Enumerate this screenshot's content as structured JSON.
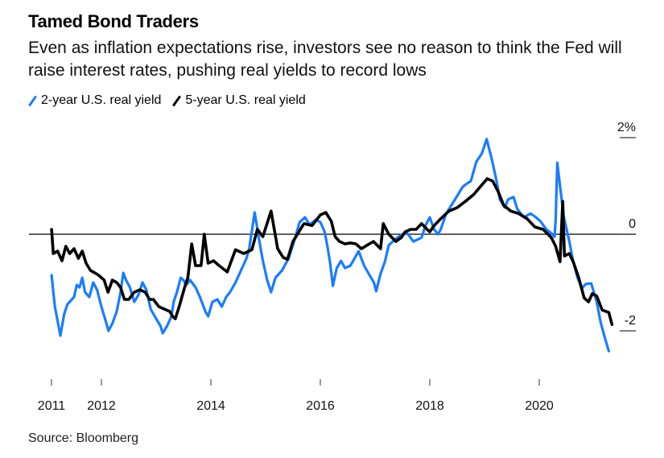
{
  "header": {
    "title": "Tamed Bond Traders",
    "subtitle": "Even as inflation expectations rise, investors see no reason to think the Fed will raise interest rates, pushing real yields to record lows"
  },
  "legend": [
    {
      "label": "2-year U.S. real yield",
      "color": "#1a7cff",
      "icon": "slash-swatch-blue"
    },
    {
      "label": "5-year U.S. real yield",
      "color": "#000000",
      "icon": "slash-swatch-black"
    }
  ],
  "source": "Source: Bloomberg",
  "chart_data": {
    "type": "line",
    "title": "Tamed Bond Traders",
    "subtitle": "Even as inflation expectations rise, investors see no reason to think the Fed will raise interest rates, pushing real yields to record lows",
    "xlabel": "",
    "ylabel": "",
    "xlim": [
      2011.0,
      2021.3
    ],
    "ylim": [
      -2.9,
      2.3
    ],
    "x_ticks": [
      {
        "value": 2011.09,
        "label": "2011"
      },
      {
        "value": 2012.0,
        "label": "2012"
      },
      {
        "value": 2014.0,
        "label": "2014"
      },
      {
        "value": 2016.0,
        "label": "2016"
      },
      {
        "value": 2018.0,
        "label": "2018"
      },
      {
        "value": 2020.0,
        "label": "2020"
      }
    ],
    "y_ticks": [
      {
        "value": 2,
        "label": "2%"
      },
      {
        "value": 0,
        "label": "0"
      },
      {
        "value": -2,
        "label": "-2"
      }
    ],
    "grid": false,
    "zero_line": true,
    "legend_position": "top-left",
    "series": [
      {
        "name": "2-year U.S. real yield",
        "color": "#1a7cff",
        "points": [
          [
            2011.09,
            -0.85
          ],
          [
            2011.15,
            -1.5
          ],
          [
            2011.2,
            -1.8
          ],
          [
            2011.25,
            -2.1
          ],
          [
            2011.32,
            -1.65
          ],
          [
            2011.38,
            -1.45
          ],
          [
            2011.42,
            -1.4
          ],
          [
            2011.5,
            -1.3
          ],
          [
            2011.55,
            -1.05
          ],
          [
            2011.6,
            -1.1
          ],
          [
            2011.65,
            -0.9
          ],
          [
            2011.7,
            -1.2
          ],
          [
            2011.78,
            -1.3
          ],
          [
            2011.85,
            -1.0
          ],
          [
            2011.92,
            -1.15
          ],
          [
            2012.0,
            -1.5
          ],
          [
            2012.08,
            -1.8
          ],
          [
            2012.13,
            -2.0
          ],
          [
            2012.2,
            -1.85
          ],
          [
            2012.28,
            -1.6
          ],
          [
            2012.35,
            -1.2
          ],
          [
            2012.4,
            -0.8
          ],
          [
            2012.45,
            -0.95
          ],
          [
            2012.52,
            -1.1
          ],
          [
            2012.6,
            -1.4
          ],
          [
            2012.68,
            -1.25
          ],
          [
            2012.75,
            -1.0
          ],
          [
            2012.82,
            -1.15
          ],
          [
            2012.9,
            -1.55
          ],
          [
            2013.0,
            -1.75
          ],
          [
            2013.08,
            -1.9
          ],
          [
            2013.12,
            -2.05
          ],
          [
            2013.2,
            -1.9
          ],
          [
            2013.28,
            -1.7
          ],
          [
            2013.32,
            -1.4
          ],
          [
            2013.38,
            -1.2
          ],
          [
            2013.45,
            -0.9
          ],
          [
            2013.5,
            -0.95
          ],
          [
            2013.55,
            -1.05
          ],
          [
            2013.62,
            -0.95
          ],
          [
            2013.72,
            -1.1
          ],
          [
            2013.8,
            -1.3
          ],
          [
            2013.9,
            -1.6
          ],
          [
            2013.95,
            -1.7
          ],
          [
            2014.03,
            -1.4
          ],
          [
            2014.12,
            -1.35
          ],
          [
            2014.2,
            -1.5
          ],
          [
            2014.28,
            -1.3
          ],
          [
            2014.35,
            -1.2
          ],
          [
            2014.45,
            -1.0
          ],
          [
            2014.55,
            -0.75
          ],
          [
            2014.65,
            -0.5
          ],
          [
            2014.7,
            -0.3
          ],
          [
            2014.8,
            0.45
          ],
          [
            2014.88,
            -0.1
          ],
          [
            2014.95,
            -0.55
          ],
          [
            2015.03,
            -0.95
          ],
          [
            2015.1,
            -1.2
          ],
          [
            2015.18,
            -0.9
          ],
          [
            2015.3,
            -0.75
          ],
          [
            2015.42,
            -0.5
          ],
          [
            2015.52,
            -0.15
          ],
          [
            2015.62,
            0.25
          ],
          [
            2015.72,
            0.35
          ],
          [
            2015.8,
            0.2
          ],
          [
            2015.92,
            0.3
          ],
          [
            2016.0,
            0.25
          ],
          [
            2016.08,
            0.05
          ],
          [
            2016.13,
            -0.25
          ],
          [
            2016.18,
            -0.6
          ],
          [
            2016.23,
            -1.07
          ],
          [
            2016.3,
            -0.7
          ],
          [
            2016.38,
            -0.55
          ],
          [
            2016.45,
            -0.7
          ],
          [
            2016.55,
            -0.65
          ],
          [
            2016.7,
            -0.35
          ],
          [
            2016.8,
            -0.65
          ],
          [
            2016.9,
            -0.85
          ],
          [
            2016.98,
            -1.0
          ],
          [
            2017.02,
            -1.18
          ],
          [
            2017.1,
            -0.82
          ],
          [
            2017.18,
            -0.57
          ],
          [
            2017.25,
            -0.23
          ],
          [
            2017.35,
            -0.12
          ],
          [
            2017.47,
            -0.02
          ],
          [
            2017.57,
            0.05
          ],
          [
            2017.7,
            -0.15
          ],
          [
            2017.85,
            -0.07
          ],
          [
            2017.92,
            0.18
          ],
          [
            2018.0,
            0.35
          ],
          [
            2018.08,
            0.1
          ],
          [
            2018.15,
            0.0
          ],
          [
            2018.2,
            0.1
          ],
          [
            2018.3,
            0.43
          ],
          [
            2018.45,
            0.7
          ],
          [
            2018.6,
            0.98
          ],
          [
            2018.68,
            1.05
          ],
          [
            2018.75,
            1.1
          ],
          [
            2018.85,
            1.5
          ],
          [
            2018.95,
            1.67
          ],
          [
            2019.04,
            1.97
          ],
          [
            2019.14,
            1.52
          ],
          [
            2019.22,
            1.1
          ],
          [
            2019.28,
            0.72
          ],
          [
            2019.37,
            0.55
          ],
          [
            2019.43,
            0.72
          ],
          [
            2019.53,
            0.77
          ],
          [
            2019.6,
            0.52
          ],
          [
            2019.72,
            0.35
          ],
          [
            2019.84,
            0.43
          ],
          [
            2019.94,
            0.35
          ],
          [
            2020.02,
            0.27
          ],
          [
            2020.13,
            0.1
          ],
          [
            2020.22,
            0.02
          ],
          [
            2020.28,
            -0.05
          ],
          [
            2020.3,
            0.3
          ],
          [
            2020.33,
            1.48
          ],
          [
            2020.38,
            1.0
          ],
          [
            2020.45,
            0.35
          ],
          [
            2020.55,
            -0.15
          ],
          [
            2020.62,
            -0.57
          ],
          [
            2020.7,
            -0.9
          ],
          [
            2020.78,
            -1.12
          ],
          [
            2020.85,
            -1.03
          ],
          [
            2020.95,
            -1.02
          ],
          [
            2021.05,
            -1.4
          ],
          [
            2021.12,
            -1.82
          ],
          [
            2021.2,
            -2.15
          ],
          [
            2021.27,
            -2.42
          ]
        ]
      },
      {
        "name": "5-year U.S. real yield",
        "color": "#000000",
        "points": [
          [
            2011.09,
            0.1
          ],
          [
            2011.12,
            -0.4
          ],
          [
            2011.2,
            -0.35
          ],
          [
            2011.28,
            -0.55
          ],
          [
            2011.35,
            -0.25
          ],
          [
            2011.42,
            -0.4
          ],
          [
            2011.5,
            -0.3
          ],
          [
            2011.58,
            -0.5
          ],
          [
            2011.65,
            -0.35
          ],
          [
            2011.72,
            -0.6
          ],
          [
            2011.8,
            -0.75
          ],
          [
            2011.88,
            -0.8
          ],
          [
            2011.95,
            -0.85
          ],
          [
            2012.05,
            -0.95
          ],
          [
            2012.12,
            -1.2
          ],
          [
            2012.2,
            -0.95
          ],
          [
            2012.28,
            -1.0
          ],
          [
            2012.35,
            -1.1
          ],
          [
            2012.42,
            -1.35
          ],
          [
            2012.5,
            -1.35
          ],
          [
            2012.6,
            -1.2
          ],
          [
            2012.7,
            -1.15
          ],
          [
            2012.8,
            -1.2
          ],
          [
            2012.88,
            -1.35
          ],
          [
            2012.95,
            -1.35
          ],
          [
            2013.05,
            -1.5
          ],
          [
            2013.15,
            -1.55
          ],
          [
            2013.25,
            -1.6
          ],
          [
            2013.3,
            -1.7
          ],
          [
            2013.35,
            -1.75
          ],
          [
            2013.42,
            -1.5
          ],
          [
            2013.52,
            -1.1
          ],
          [
            2013.58,
            -0.9
          ],
          [
            2013.65,
            -0.2
          ],
          [
            2013.72,
            -0.65
          ],
          [
            2013.82,
            -0.65
          ],
          [
            2013.88,
            0.0
          ],
          [
            2013.95,
            -0.6
          ],
          [
            2014.05,
            -0.55
          ],
          [
            2014.15,
            -0.65
          ],
          [
            2014.3,
            -0.78
          ],
          [
            2014.45,
            -0.32
          ],
          [
            2014.6,
            -0.4
          ],
          [
            2014.75,
            -0.32
          ],
          [
            2014.85,
            0.1
          ],
          [
            2014.95,
            -0.05
          ],
          [
            2015.1,
            0.48
          ],
          [
            2015.22,
            -0.3
          ],
          [
            2015.32,
            -0.48
          ],
          [
            2015.4,
            -0.52
          ],
          [
            2015.5,
            -0.15
          ],
          [
            2015.7,
            0.22
          ],
          [
            2015.85,
            0.18
          ],
          [
            2016.0,
            0.4
          ],
          [
            2016.1,
            0.45
          ],
          [
            2016.2,
            0.27
          ],
          [
            2016.27,
            -0.05
          ],
          [
            2016.35,
            -0.15
          ],
          [
            2016.45,
            -0.2
          ],
          [
            2016.55,
            -0.18
          ],
          [
            2016.65,
            -0.2
          ],
          [
            2016.75,
            -0.3
          ],
          [
            2016.85,
            -0.23
          ],
          [
            2016.97,
            -0.15
          ],
          [
            2017.1,
            -0.3
          ],
          [
            2017.15,
            0.22
          ],
          [
            2017.25,
            0.0
          ],
          [
            2017.38,
            -0.15
          ],
          [
            2017.48,
            -0.07
          ],
          [
            2017.55,
            0.05
          ],
          [
            2017.65,
            0.1
          ],
          [
            2017.75,
            0.1
          ],
          [
            2017.85,
            0.22
          ],
          [
            2017.95,
            0.1
          ],
          [
            2018.0,
            0.05
          ],
          [
            2018.08,
            0.18
          ],
          [
            2018.2,
            0.32
          ],
          [
            2018.35,
            0.48
          ],
          [
            2018.5,
            0.55
          ],
          [
            2018.65,
            0.68
          ],
          [
            2018.8,
            0.82
          ],
          [
            2018.95,
            1.02
          ],
          [
            2019.05,
            1.15
          ],
          [
            2019.15,
            1.1
          ],
          [
            2019.25,
            0.88
          ],
          [
            2019.35,
            0.6
          ],
          [
            2019.48,
            0.48
          ],
          [
            2019.62,
            0.43
          ],
          [
            2019.78,
            0.32
          ],
          [
            2019.92,
            0.15
          ],
          [
            2020.07,
            0.1
          ],
          [
            2020.22,
            -0.07
          ],
          [
            2020.3,
            -0.25
          ],
          [
            2020.38,
            -0.57
          ],
          [
            2020.43,
            0.68
          ],
          [
            2020.46,
            -0.45
          ],
          [
            2020.55,
            -0.4
          ],
          [
            2020.62,
            -0.57
          ],
          [
            2020.72,
            -0.9
          ],
          [
            2020.82,
            -1.32
          ],
          [
            2020.9,
            -1.4
          ],
          [
            2020.97,
            -1.23
          ],
          [
            2021.05,
            -1.28
          ],
          [
            2021.15,
            -1.57
          ],
          [
            2021.27,
            -1.62
          ],
          [
            2021.33,
            -1.87
          ]
        ]
      }
    ]
  }
}
